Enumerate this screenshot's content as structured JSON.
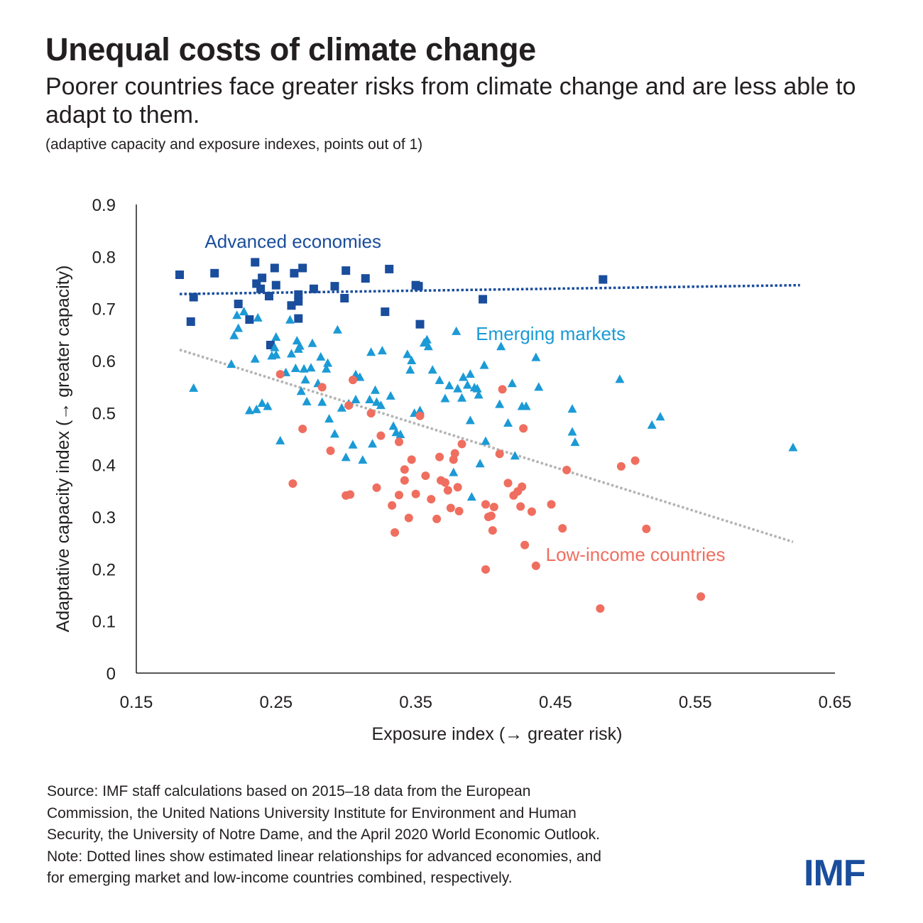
{
  "header": {
    "title": "Unequal costs of climate change",
    "subtitle": "Poorer countries face greater risks from climate change and are less able to adapt to them.",
    "units": "(adaptive capacity and exposure indexes, points out of 1)"
  },
  "footnote": {
    "source_lines": [
      "Source: IMF staff calculations based on 2015–18 data from the European",
      "Commission, the United Nations University Institute for Environment and Human",
      "Security, the University of Notre Dame, and the April 2020 World Economic Outlook."
    ],
    "note_lines": [
      "Note: Dotted lines show estimated linear relationships for advanced economies, and",
      "for emerging market and low-income countries combined, respectively."
    ]
  },
  "logo": {
    "text": "IMF",
    "color": "#1a4d9c"
  },
  "colors": {
    "advanced": "#1a4d9c",
    "emerging": "#1b9ad6",
    "low_income": "#ef6e5f",
    "trend_combined": "#b3b3b3",
    "axis": "#231f20"
  },
  "chart_data": {
    "type": "scatter",
    "xlabel": "Exposure index (→ greater risk)",
    "ylabel": "Adaptative capacity index (→ greater capacity)",
    "xlim": [
      0.15,
      0.65
    ],
    "ylim": [
      0,
      0.9
    ],
    "xticks": [
      "0.15",
      "0.25",
      "0.35",
      "0.45",
      "0.55",
      "0.65"
    ],
    "yticks": [
      "0",
      "0.1",
      "0.2",
      "0.3",
      "0.4",
      "0.5",
      "0.6",
      "0.7",
      "0.8",
      "0.9"
    ],
    "grid": false,
    "series": [
      {
        "name": "Advanced economies",
        "marker": "square",
        "color": "#1a4d9c",
        "trend": [
          [
            0.181,
            0.728
          ],
          [
            0.625,
            0.745
          ]
        ],
        "points": [
          [
            0.181,
            0.765
          ],
          [
            0.189,
            0.675
          ],
          [
            0.191,
            0.722
          ],
          [
            0.206,
            0.768
          ],
          [
            0.223,
            0.709
          ],
          [
            0.231,
            0.679
          ],
          [
            0.235,
            0.789
          ],
          [
            0.236,
            0.748
          ],
          [
            0.239,
            0.738
          ],
          [
            0.24,
            0.759
          ],
          [
            0.245,
            0.724
          ],
          [
            0.246,
            0.63
          ],
          [
            0.249,
            0.778
          ],
          [
            0.25,
            0.745
          ],
          [
            0.261,
            0.706
          ],
          [
            0.263,
            0.768
          ],
          [
            0.266,
            0.714
          ],
          [
            0.266,
            0.681
          ],
          [
            0.266,
            0.727
          ],
          [
            0.269,
            0.778
          ],
          [
            0.277,
            0.738
          ],
          [
            0.292,
            0.743
          ],
          [
            0.299,
            0.72
          ],
          [
            0.3,
            0.773
          ],
          [
            0.314,
            0.758
          ],
          [
            0.328,
            0.694
          ],
          [
            0.331,
            0.776
          ],
          [
            0.35,
            0.745
          ],
          [
            0.352,
            0.743
          ],
          [
            0.353,
            0.67
          ],
          [
            0.398,
            0.718
          ],
          [
            0.484,
            0.756
          ]
        ]
      },
      {
        "name": "Emerging markets",
        "marker": "triangle",
        "color": "#1b9ad6",
        "points": [
          [
            0.191,
            0.547
          ],
          [
            0.218,
            0.593
          ],
          [
            0.22,
            0.648
          ],
          [
            0.222,
            0.687
          ],
          [
            0.223,
            0.662
          ],
          [
            0.227,
            0.694
          ],
          [
            0.231,
            0.504
          ],
          [
            0.235,
            0.603
          ],
          [
            0.236,
            0.506
          ],
          [
            0.237,
            0.682
          ],
          [
            0.24,
            0.518
          ],
          [
            0.244,
            0.512
          ],
          [
            0.247,
            0.609
          ],
          [
            0.249,
            0.625
          ],
          [
            0.25,
            0.645
          ],
          [
            0.25,
            0.611
          ],
          [
            0.253,
            0.446
          ],
          [
            0.257,
            0.577
          ],
          [
            0.26,
            0.678
          ],
          [
            0.261,
            0.613
          ],
          [
            0.264,
            0.585
          ],
          [
            0.265,
            0.638
          ],
          [
            0.266,
            0.622
          ],
          [
            0.267,
            0.628
          ],
          [
            0.268,
            0.541
          ],
          [
            0.27,
            0.584
          ],
          [
            0.271,
            0.563
          ],
          [
            0.272,
            0.521
          ],
          [
            0.275,
            0.586
          ],
          [
            0.276,
            0.633
          ],
          [
            0.28,
            0.556
          ],
          [
            0.282,
            0.607
          ],
          [
            0.283,
            0.52
          ],
          [
            0.286,
            0.584
          ],
          [
            0.287,
            0.595
          ],
          [
            0.288,
            0.488
          ],
          [
            0.292,
            0.459
          ],
          [
            0.294,
            0.659
          ],
          [
            0.297,
            0.509
          ],
          [
            0.3,
            0.414
          ],
          [
            0.302,
            0.517
          ],
          [
            0.305,
            0.438
          ],
          [
            0.307,
            0.525
          ],
          [
            0.307,
            0.573
          ],
          [
            0.31,
            0.568
          ],
          [
            0.312,
            0.409
          ],
          [
            0.317,
            0.525
          ],
          [
            0.318,
            0.616
          ],
          [
            0.319,
            0.44
          ],
          [
            0.321,
            0.543
          ],
          [
            0.322,
            0.52
          ],
          [
            0.325,
            0.514
          ],
          [
            0.326,
            0.619
          ],
          [
            0.332,
            0.532
          ],
          [
            0.334,
            0.474
          ],
          [
            0.336,
            0.462
          ],
          [
            0.339,
            0.458
          ],
          [
            0.344,
            0.612
          ],
          [
            0.346,
            0.582
          ],
          [
            0.347,
            0.6
          ],
          [
            0.349,
            0.499
          ],
          [
            0.353,
            0.504
          ],
          [
            0.356,
            0.634
          ],
          [
            0.358,
            0.64
          ],
          [
            0.359,
            0.627
          ],
          [
            0.362,
            0.582
          ],
          [
            0.367,
            0.562
          ],
          [
            0.371,
            0.527
          ],
          [
            0.374,
            0.552
          ],
          [
            0.377,
            0.385
          ],
          [
            0.379,
            0.656
          ],
          [
            0.38,
            0.546
          ],
          [
            0.383,
            0.528
          ],
          [
            0.384,
            0.568
          ],
          [
            0.387,
            0.553
          ],
          [
            0.389,
            0.485
          ],
          [
            0.389,
            0.574
          ],
          [
            0.39,
            0.338
          ],
          [
            0.392,
            0.548
          ],
          [
            0.394,
            0.546
          ],
          [
            0.395,
            0.534
          ],
          [
            0.396,
            0.402
          ],
          [
            0.399,
            0.591
          ],
          [
            0.4,
            0.445
          ],
          [
            0.41,
            0.516
          ],
          [
            0.411,
            0.627
          ],
          [
            0.416,
            0.48
          ],
          [
            0.419,
            0.556
          ],
          [
            0.421,
            0.417
          ],
          [
            0.426,
            0.512
          ],
          [
            0.429,
            0.512
          ],
          [
            0.436,
            0.606
          ],
          [
            0.438,
            0.549
          ],
          [
            0.462,
            0.507
          ],
          [
            0.462,
            0.463
          ],
          [
            0.464,
            0.443
          ],
          [
            0.496,
            0.564
          ],
          [
            0.519,
            0.476
          ],
          [
            0.525,
            0.492
          ],
          [
            0.62,
            0.433
          ]
        ]
      },
      {
        "name": "Low-income countries",
        "marker": "circle",
        "color": "#ef6e5f",
        "points": [
          [
            0.253,
            0.574
          ],
          [
            0.262,
            0.364
          ],
          [
            0.269,
            0.469
          ],
          [
            0.283,
            0.549
          ],
          [
            0.289,
            0.427
          ],
          [
            0.3,
            0.341
          ],
          [
            0.302,
            0.514
          ],
          [
            0.303,
            0.343
          ],
          [
            0.305,
            0.563
          ],
          [
            0.318,
            0.499
          ],
          [
            0.322,
            0.356
          ],
          [
            0.325,
            0.456
          ],
          [
            0.333,
            0.322
          ],
          [
            0.335,
            0.27
          ],
          [
            0.338,
            0.342
          ],
          [
            0.338,
            0.444
          ],
          [
            0.342,
            0.391
          ],
          [
            0.342,
            0.37
          ],
          [
            0.345,
            0.298
          ],
          [
            0.347,
            0.41
          ],
          [
            0.35,
            0.344
          ],
          [
            0.353,
            0.494
          ],
          [
            0.357,
            0.379
          ],
          [
            0.361,
            0.334
          ],
          [
            0.365,
            0.296
          ],
          [
            0.367,
            0.415
          ],
          [
            0.368,
            0.37
          ],
          [
            0.371,
            0.366
          ],
          [
            0.373,
            0.351
          ],
          [
            0.375,
            0.317
          ],
          [
            0.377,
            0.41
          ],
          [
            0.378,
            0.422
          ],
          [
            0.38,
            0.357
          ],
          [
            0.381,
            0.311
          ],
          [
            0.383,
            0.44
          ],
          [
            0.4,
            0.324
          ],
          [
            0.402,
            0.3
          ],
          [
            0.404,
            0.302
          ],
          [
            0.405,
            0.274
          ],
          [
            0.406,
            0.319
          ],
          [
            0.41,
            0.421
          ],
          [
            0.412,
            0.545
          ],
          [
            0.416,
            0.365
          ],
          [
            0.42,
            0.341
          ],
          [
            0.423,
            0.349
          ],
          [
            0.425,
            0.32
          ],
          [
            0.426,
            0.358
          ],
          [
            0.427,
            0.47
          ],
          [
            0.428,
            0.246
          ],
          [
            0.433,
            0.31
          ],
          [
            0.436,
            0.206
          ],
          [
            0.447,
            0.324
          ],
          [
            0.455,
            0.278
          ],
          [
            0.458,
            0.39
          ],
          [
            0.482,
            0.124
          ],
          [
            0.497,
            0.397
          ],
          [
            0.507,
            0.408
          ],
          [
            0.515,
            0.277
          ],
          [
            0.554,
            0.147
          ],
          [
            0.4,
            0.199
          ]
        ]
      }
    ],
    "combined_trend": {
      "color": "#b3b3b3",
      "line": [
        [
          0.181,
          0.621
        ],
        [
          0.62,
          0.252
        ]
      ]
    },
    "annotations": [
      {
        "text": "Advanced economies",
        "color": "#1a4d9c",
        "x": 0.199,
        "y": 0.829
      },
      {
        "text": "Emerging markets",
        "color": "#1b9ad6",
        "x": 0.393,
        "y": 0.652
      },
      {
        "text": "Low-income countries",
        "color": "#ef6e5f",
        "x": 0.443,
        "y": 0.228
      }
    ]
  }
}
